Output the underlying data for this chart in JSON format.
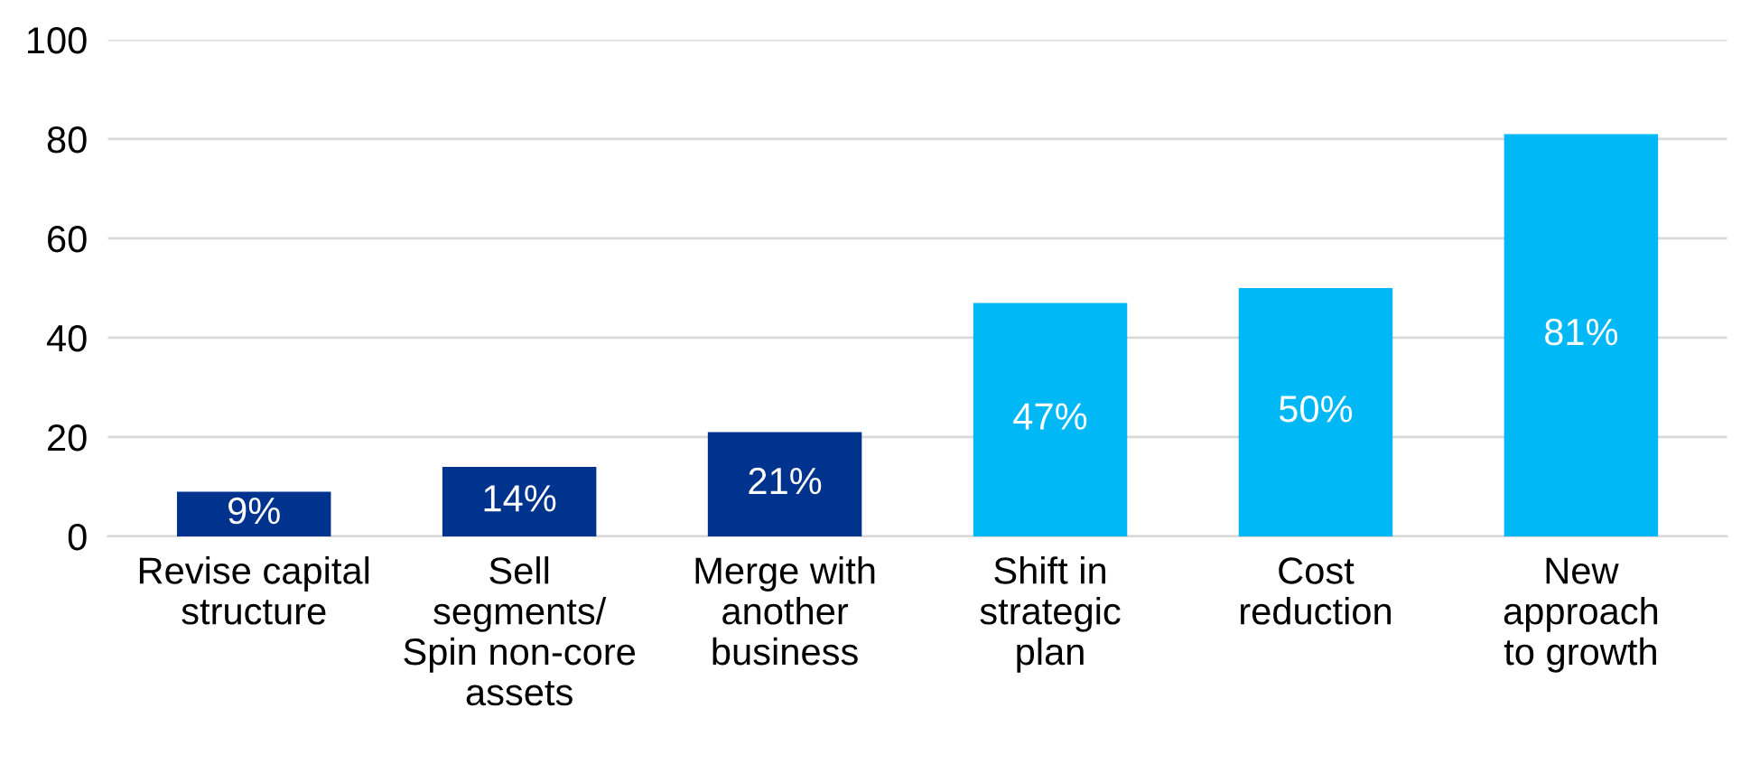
{
  "chart_data": {
    "type": "bar",
    "categories": [
      "Revise capital\nstructure",
      "Sell\nsegments/\nSpin non-core\nassets",
      "Merge with\nanother\nbusiness",
      "Shift in\nstrategic\nplan",
      "Cost\nreduction",
      "New\napproach\nto growth"
    ],
    "values": [
      9,
      14,
      21,
      47,
      50,
      81
    ],
    "colors": [
      "#00338d",
      "#00338d",
      "#00338d",
      "#00b8f5",
      "#00b8f5",
      "#00b8f5"
    ],
    "value_labels": [
      "9%",
      "14%",
      "21%",
      "47%",
      "50%",
      "81%"
    ],
    "ylim": [
      0,
      100
    ],
    "yticks": [
      0,
      20,
      40,
      60,
      80,
      100
    ],
    "grid": "y",
    "legend": false
  }
}
